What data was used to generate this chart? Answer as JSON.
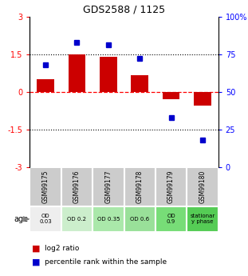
{
  "title": "GDS2588 / 1125",
  "samples": [
    "GSM99175",
    "GSM99176",
    "GSM99177",
    "GSM99178",
    "GSM99179",
    "GSM99180"
  ],
  "log2_ratio": [
    0.5,
    1.5,
    1.4,
    0.65,
    -0.3,
    -0.55
  ],
  "percentile_rank": [
    68,
    83,
    81,
    72,
    33,
    18
  ],
  "bar_color": "#cc0000",
  "dot_color": "#0000cc",
  "ylim_left": [
    -3,
    3
  ],
  "ylim_right": [
    0,
    100
  ],
  "yticks_left": [
    -3,
    -1.5,
    0,
    1.5,
    3
  ],
  "yticks_right": [
    0,
    25,
    50,
    75,
    100
  ],
  "ytick_labels_left": [
    "-3",
    "-1.5",
    "0",
    "1.5",
    "3"
  ],
  "ytick_labels_right": [
    "0",
    "25",
    "50",
    "75",
    "100%"
  ],
  "age_labels": [
    "OD\n0.03",
    "OD 0.2",
    "OD 0.35",
    "OD 0.6",
    "OD\n0.9",
    "stationar\ny phase"
  ],
  "age_bg_colors": [
    "#eeeeee",
    "#cceecc",
    "#aae8aa",
    "#99e099",
    "#77dd77",
    "#55cc55"
  ],
  "sample_bg_color": "#cccccc",
  "legend_items": [
    {
      "color": "#cc0000",
      "label": "log2 ratio"
    },
    {
      "color": "#0000cc",
      "label": "percentile rank within the sample"
    }
  ]
}
